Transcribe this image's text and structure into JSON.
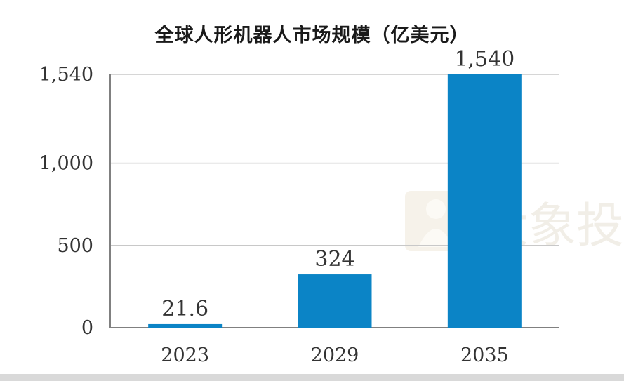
{
  "chart_data": {
    "type": "bar",
    "title": "全球人形机器人市场规模（亿美元）",
    "categories": [
      "2023",
      "2029",
      "2035"
    ],
    "values": [
      21.6,
      324,
      1540
    ],
    "data_labels": [
      "21.6",
      "324",
      "1,540"
    ],
    "y_ticks": [
      {
        "value": 0,
        "label": "0"
      },
      {
        "value": 500,
        "label": "500"
      },
      {
        "value": 1000,
        "label": "1,000"
      },
      {
        "value": 1540,
        "label": "1,540"
      }
    ],
    "ylim": [
      0,
      1540
    ],
    "grid": true,
    "colors": {
      "bar": "#0b84c6",
      "grid": "#c8c8c8",
      "axis": "#808080",
      "text": "#333333"
    }
  },
  "watermark": {
    "text": "大象投"
  }
}
